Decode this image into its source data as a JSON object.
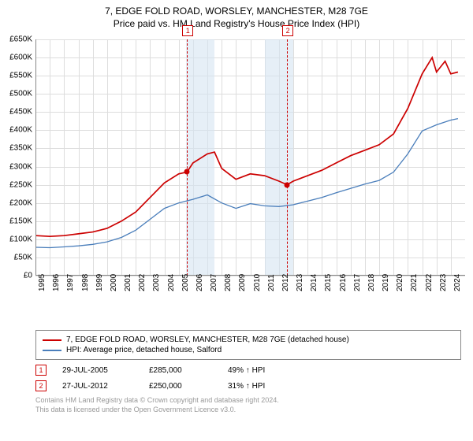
{
  "title": "7, EDGE FOLD ROAD, WORSLEY, MANCHESTER, M28 7GE",
  "subtitle": "Price paid vs. HM Land Registry's House Price Index (HPI)",
  "chart": {
    "type": "line",
    "background_color": "#ffffff",
    "grid_color": "#dddddd",
    "axis_color": "#888888",
    "x_min": 1995,
    "x_max": 2025,
    "y_min": 0,
    "y_max": 650000,
    "y_ticks": [
      0,
      50000,
      100000,
      150000,
      200000,
      250000,
      300000,
      350000,
      400000,
      450000,
      500000,
      550000,
      600000,
      650000
    ],
    "y_tick_labels": [
      "£0",
      "£50K",
      "£100K",
      "£150K",
      "£200K",
      "£250K",
      "£300K",
      "£350K",
      "£400K",
      "£450K",
      "£500K",
      "£550K",
      "£600K",
      "£650K"
    ],
    "x_ticks": [
      1995,
      1996,
      1997,
      1998,
      1999,
      2000,
      2001,
      2002,
      2003,
      2004,
      2005,
      2006,
      2007,
      2008,
      2009,
      2010,
      2011,
      2012,
      2013,
      2014,
      2015,
      2016,
      2017,
      2018,
      2019,
      2020,
      2021,
      2022,
      2023,
      2024
    ],
    "label_fontsize": 10,
    "bands": [
      {
        "x_from": 2005.5,
        "x_to": 2007.5,
        "color": "#d6e4f2"
      },
      {
        "x_from": 2011.0,
        "x_to": 2013.0,
        "color": "#d6e4f2"
      }
    ],
    "markers": [
      {
        "n": "1",
        "x": 2005.58,
        "dot_y": 285000
      },
      {
        "n": "2",
        "x": 2012.57,
        "dot_y": 250000
      }
    ],
    "series": [
      {
        "name": "property",
        "label": "7, EDGE FOLD ROAD, WORSLEY, MANCHESTER, M28 7GE (detached house)",
        "color": "#cc0000",
        "width": 1.7,
        "data": [
          [
            1995,
            110000
          ],
          [
            1996,
            108000
          ],
          [
            1997,
            110000
          ],
          [
            1998,
            115000
          ],
          [
            1999,
            120000
          ],
          [
            2000,
            130000
          ],
          [
            2001,
            150000
          ],
          [
            2002,
            175000
          ],
          [
            2003,
            215000
          ],
          [
            2004,
            255000
          ],
          [
            2005,
            280000
          ],
          [
            2005.58,
            285000
          ],
          [
            2006,
            310000
          ],
          [
            2007,
            335000
          ],
          [
            2007.5,
            340000
          ],
          [
            2008,
            295000
          ],
          [
            2009,
            265000
          ],
          [
            2010,
            280000
          ],
          [
            2011,
            275000
          ],
          [
            2012,
            260000
          ],
          [
            2012.57,
            250000
          ],
          [
            2013,
            260000
          ],
          [
            2014,
            275000
          ],
          [
            2015,
            290000
          ],
          [
            2016,
            310000
          ],
          [
            2017,
            330000
          ],
          [
            2018,
            345000
          ],
          [
            2019,
            360000
          ],
          [
            2020,
            390000
          ],
          [
            2021,
            460000
          ],
          [
            2022,
            555000
          ],
          [
            2022.7,
            600000
          ],
          [
            2023,
            560000
          ],
          [
            2023.6,
            590000
          ],
          [
            2024,
            555000
          ],
          [
            2024.5,
            560000
          ]
        ]
      },
      {
        "name": "hpi",
        "label": "HPI: Average price, detached house, Salford",
        "color": "#4a7ebb",
        "width": 1.3,
        "data": [
          [
            1995,
            78000
          ],
          [
            1996,
            77000
          ],
          [
            1997,
            79000
          ],
          [
            1998,
            82000
          ],
          [
            1999,
            86000
          ],
          [
            2000,
            93000
          ],
          [
            2001,
            105000
          ],
          [
            2002,
            125000
          ],
          [
            2003,
            155000
          ],
          [
            2004,
            185000
          ],
          [
            2005,
            200000
          ],
          [
            2006,
            210000
          ],
          [
            2007,
            222000
          ],
          [
            2008,
            200000
          ],
          [
            2009,
            185000
          ],
          [
            2010,
            198000
          ],
          [
            2011,
            192000
          ],
          [
            2012,
            190000
          ],
          [
            2013,
            195000
          ],
          [
            2014,
            205000
          ],
          [
            2015,
            215000
          ],
          [
            2016,
            228000
          ],
          [
            2017,
            240000
          ],
          [
            2018,
            252000
          ],
          [
            2019,
            262000
          ],
          [
            2020,
            285000
          ],
          [
            2021,
            335000
          ],
          [
            2022,
            398000
          ],
          [
            2023,
            415000
          ],
          [
            2024,
            428000
          ],
          [
            2024.5,
            432000
          ]
        ]
      }
    ]
  },
  "sales": [
    {
      "n": "1",
      "date": "29-JUL-2005",
      "price": "£285,000",
      "pct": "49% ↑ HPI",
      "color": "#cc0000"
    },
    {
      "n": "2",
      "date": "27-JUL-2012",
      "price": "£250,000",
      "pct": "31% ↑ HPI",
      "color": "#cc0000"
    }
  ],
  "credits": {
    "line1": "Contains HM Land Registry data © Crown copyright and database right 2024.",
    "line2": "This data is licensed under the Open Government Licence v3.0."
  }
}
